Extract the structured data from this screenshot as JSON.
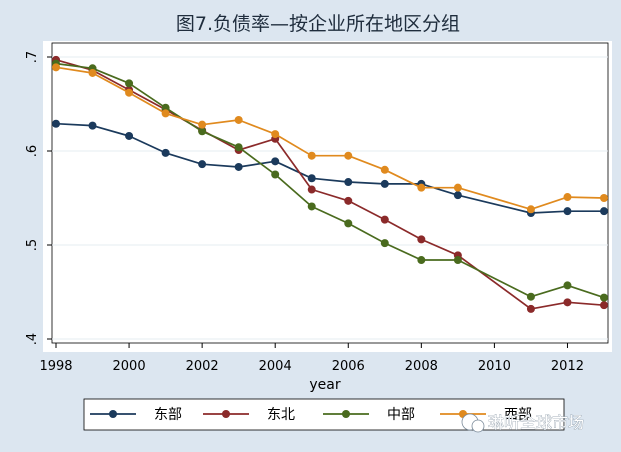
{
  "chart_data": {
    "type": "line",
    "title": "图7.负债率—按企业所在地区分组",
    "xlabel": "year",
    "ylabel": "",
    "xlim": [
      1998,
      2013
    ],
    "ylim": [
      0.4,
      0.7
    ],
    "x_ticks": [
      1998,
      2000,
      2002,
      2004,
      2006,
      2008,
      2010,
      2012
    ],
    "x_tick_labels": [
      "1998",
      "2000",
      "2002",
      "2004",
      "2006",
      "2008",
      "2010",
      "2012"
    ],
    "y_ticks": [
      0.4,
      0.5,
      0.6,
      0.7
    ],
    "y_tick_labels": [
      ".4",
      ".5",
      ".6",
      ".7"
    ],
    "grid": true,
    "legend_position": "bottom",
    "series": [
      {
        "name": "东部",
        "color": "#1b3a5c",
        "x": [
          1998,
          1999,
          2000,
          2001,
          2002,
          2003,
          2004,
          2005,
          2006,
          2007,
          2008,
          2009,
          2011,
          2012,
          2013
        ],
        "values": [
          0.629,
          0.627,
          0.616,
          0.598,
          0.586,
          0.583,
          0.589,
          0.571,
          0.567,
          0.565,
          0.565,
          0.553,
          0.534,
          0.536,
          0.536
        ]
      },
      {
        "name": "东北",
        "color": "#8b2a2a",
        "x": [
          1998,
          1999,
          2000,
          2001,
          2002,
          2003,
          2004,
          2005,
          2006,
          2007,
          2008,
          2009,
          2011,
          2012,
          2013
        ],
        "values": [
          0.697,
          0.686,
          0.665,
          0.644,
          0.622,
          0.601,
          0.613,
          0.559,
          0.547,
          0.527,
          0.506,
          0.489,
          0.432,
          0.439,
          0.436
        ]
      },
      {
        "name": "中部",
        "color": "#4a6b1e",
        "x": [
          1998,
          1999,
          2000,
          2001,
          2002,
          2003,
          2004,
          2005,
          2006,
          2007,
          2008,
          2009,
          2011,
          2012,
          2013
        ],
        "values": [
          0.693,
          0.688,
          0.672,
          0.646,
          0.621,
          0.604,
          0.575,
          0.541,
          0.523,
          0.502,
          0.484,
          0.484,
          0.445,
          0.457,
          0.444
        ]
      },
      {
        "name": "西部",
        "color": "#e08a1e",
        "x": [
          1998,
          1999,
          2000,
          2001,
          2002,
          2003,
          2004,
          2005,
          2006,
          2007,
          2008,
          2009,
          2011,
          2012,
          2013
        ],
        "values": [
          0.689,
          0.683,
          0.662,
          0.64,
          0.628,
          0.633,
          0.618,
          0.595,
          0.595,
          0.58,
          0.561,
          0.561,
          0.538,
          0.551,
          0.55
        ]
      }
    ]
  },
  "watermark": {
    "text": "琳听全球市场"
  }
}
